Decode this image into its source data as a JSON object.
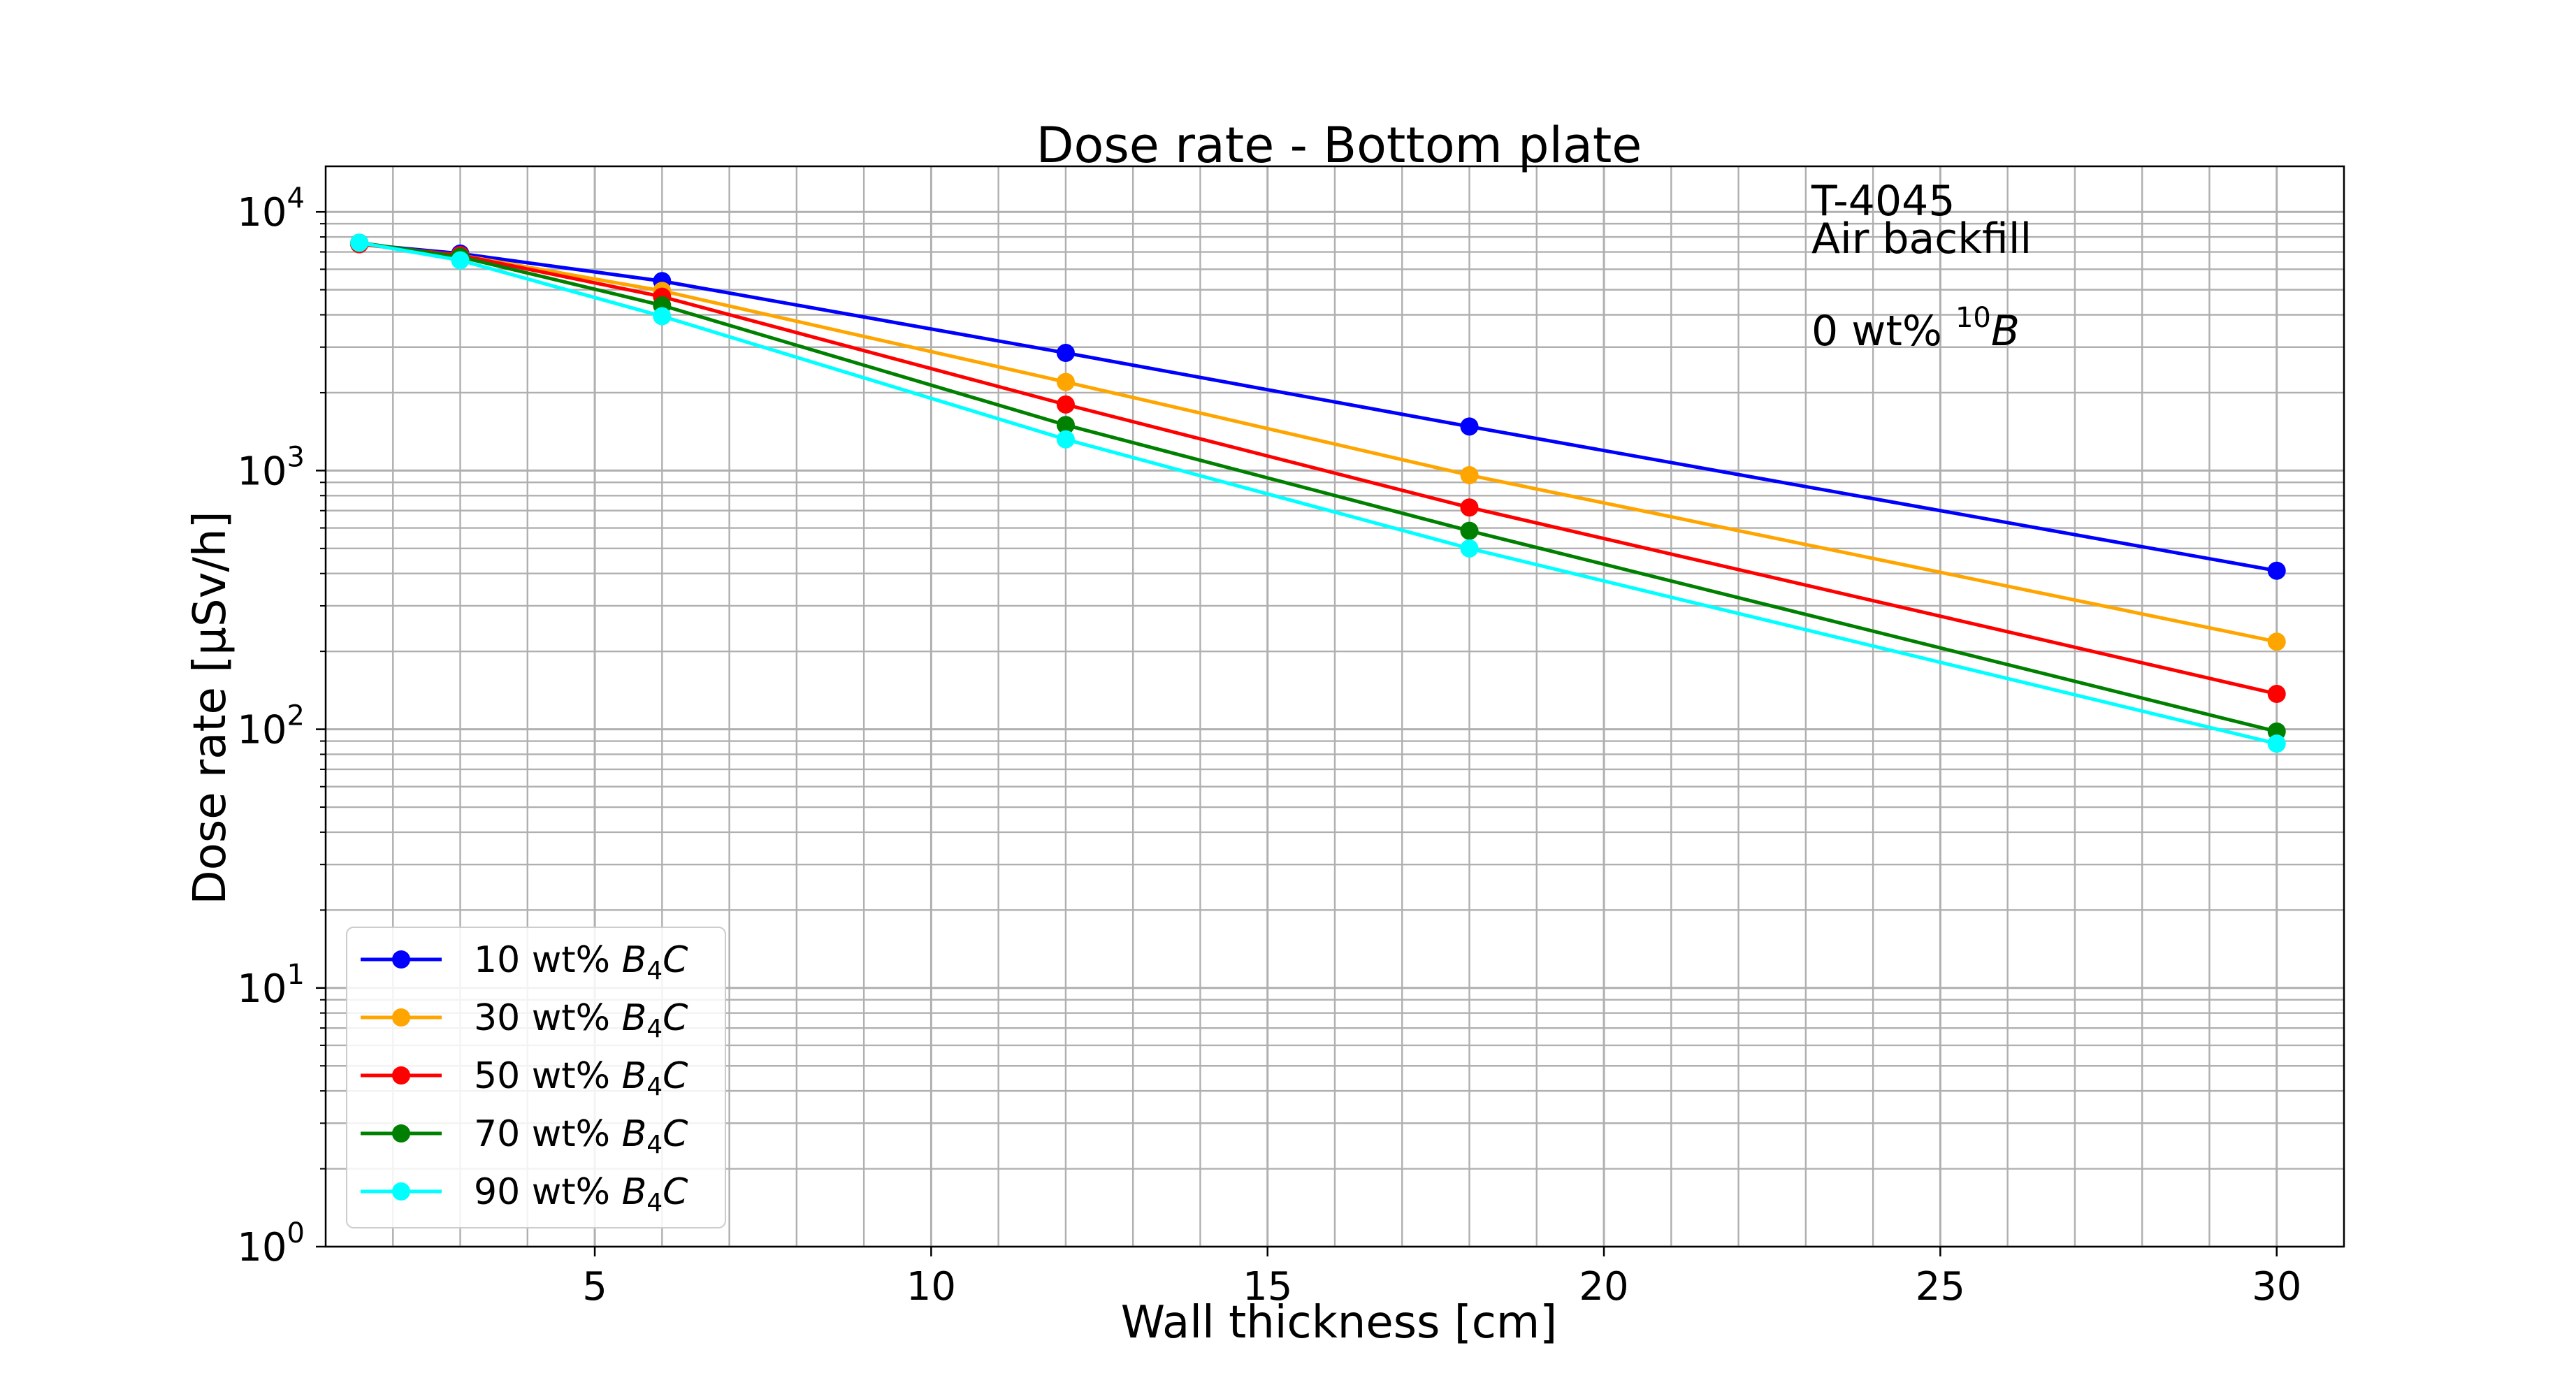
{
  "chart_data": {
    "type": "line",
    "title": "Dose rate - Bottom plate",
    "xlabel": "Wall thickness [cm]",
    "ylabel": "Dose rate [μSv/h]",
    "yscale": "log",
    "xlim": [
      1,
      31
    ],
    "ylim": [
      1,
      15000
    ],
    "grid": true,
    "legend_position": "lower-left",
    "x_ticks": [
      5,
      10,
      15,
      20,
      25,
      30
    ],
    "x_tick_labels": [
      "5",
      "10",
      "15",
      "20",
      "25",
      "30"
    ],
    "y_ticks": [
      1,
      10,
      100,
      1000,
      10000
    ],
    "y_tick_labels": [
      "10^0",
      "10^1",
      "10^2",
      "10^3",
      "10^4"
    ],
    "x": [
      1.5,
      3,
      6,
      12,
      18,
      30
    ],
    "series": [
      {
        "name": "10 wt% B4C",
        "legend_prefix": "10 wt% ",
        "color": "#0000ff",
        "values": [
          7500,
          6900,
          5400,
          2850,
          1480,
          410
        ]
      },
      {
        "name": "30 wt% B4C",
        "legend_prefix": "30 wt% ",
        "color": "#ffa500",
        "values": [
          7500,
          6800,
          4950,
          2200,
          960,
          218
        ]
      },
      {
        "name": "50 wt% B4C",
        "legend_prefix": "50 wt% ",
        "color": "#ff0000",
        "values": [
          7500,
          6800,
          4700,
          1800,
          720,
          137
        ]
      },
      {
        "name": "70 wt% B4C",
        "legend_prefix": "70 wt% ",
        "color": "#008000",
        "values": [
          7600,
          6700,
          4350,
          1500,
          585,
          98
        ]
      },
      {
        "name": "90 wt% B4C",
        "legend_prefix": "90 wt% ",
        "color": "#00ffff",
        "values": [
          7600,
          6500,
          3950,
          1320,
          500,
          88
        ]
      }
    ],
    "annotations": {
      "line1": "T-4045",
      "line2": "Air backfill",
      "line3_prefix": "0 wt% ",
      "line3_sup": "10",
      "line3_symbol": "B"
    }
  }
}
